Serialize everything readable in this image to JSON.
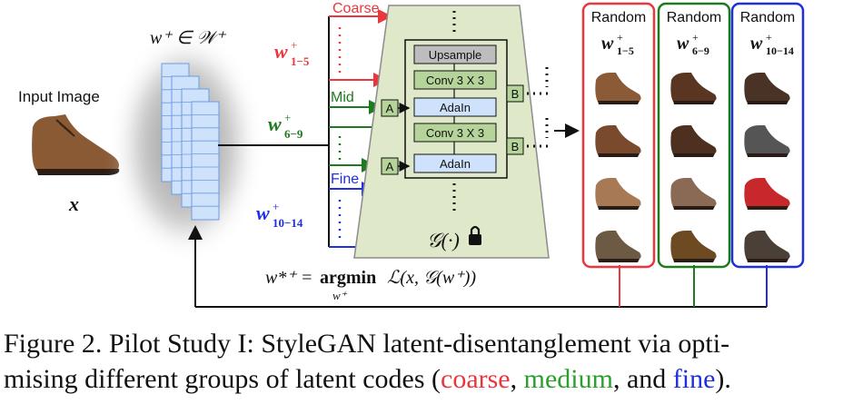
{
  "figure": {
    "input_label": "Input Image",
    "input_var": "x",
    "latent_space": "w⁺ ∈ 𝒲⁺",
    "groups": [
      {
        "name": "Coarse",
        "code": "w",
        "sub": "1−5",
        "color": "#e8383d"
      },
      {
        "name": "Mid",
        "code": "w",
        "sub": "6−9",
        "color": "#1e7a1e"
      },
      {
        "name": "Fine",
        "code": "w",
        "sub": "10−14",
        "color": "#1f2fe0"
      }
    ],
    "generator": {
      "blocks": [
        "Upsample",
        "Conv 3 X 3",
        "AdaIn",
        "Conv 3 X 3",
        "AdaIn"
      ],
      "a_label": "A",
      "b_label": "B",
      "symbol": "𝒢(·)",
      "lock_icon": "lock-icon"
    },
    "objective": {
      "lhs": "w*⁺ =",
      "op": "argmin",
      "op_sub": "w⁺",
      "rhs": "ℒ(x, 𝒢(w⁺))"
    },
    "outputs": [
      {
        "title": "Random",
        "code": "w",
        "sub": "1−5",
        "color": "#e8383d"
      },
      {
        "title": "Random",
        "code": "w",
        "sub": "6−9",
        "color": "#1e7a1e"
      },
      {
        "title": "Random",
        "code": "w",
        "sub": "10−14",
        "color": "#1f2fe0"
      }
    ]
  },
  "caption": {
    "part1": "Figure 2. Pilot Study I: StyleGAN latent-disentanglement via opti-",
    "part2": "mising different groups of latent codes (",
    "coarse": "coarse",
    "sep1": ", ",
    "medium": "medium",
    "sep2": ", and ",
    "fine": "fine",
    "end": ").",
    "colors": {
      "coarse": "#e8383d",
      "medium": "#2ca02c",
      "fine": "#1f2fe0"
    }
  }
}
